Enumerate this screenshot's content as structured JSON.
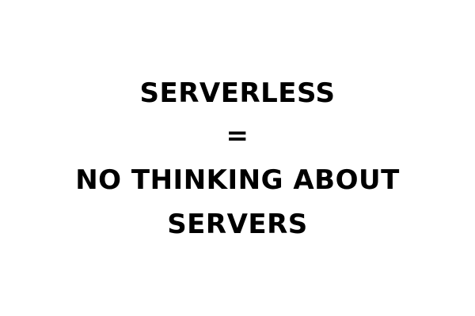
{
  "slide": {
    "lines": [
      "SERVERLESS",
      "=",
      "NO THINKING ABOUT",
      "SERVERS"
    ],
    "text_color": "#000000",
    "background_color": "#ffffff"
  }
}
